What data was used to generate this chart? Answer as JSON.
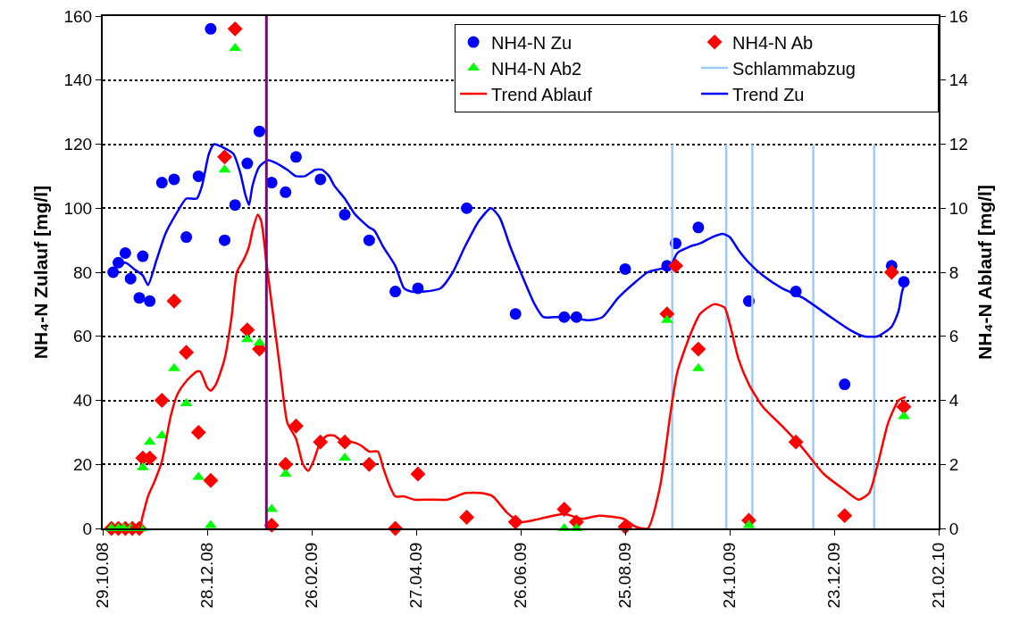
{
  "chart_data": {
    "type": "scatter",
    "ylabel": "NH₄-N Zulauf [mg/l]",
    "y2label": "NH₄-N Ablauf [mg/l]",
    "xlim": [
      "2008-10-29",
      "2010-02-21"
    ],
    "xticks": [
      {
        "value": "2008-10-29",
        "label": "29.10.08"
      },
      {
        "value": "2008-12-28",
        "label": "28.12.08"
      },
      {
        "value": "2009-02-26",
        "label": "26.02.09"
      },
      {
        "value": "2009-04-27",
        "label": "27.04.09"
      },
      {
        "value": "2009-06-26",
        "label": "26.06.09"
      },
      {
        "value": "2009-08-25",
        "label": "25.08.09"
      },
      {
        "value": "2009-10-24",
        "label": "24.10.09"
      },
      {
        "value": "2009-12-23",
        "label": "23.12.09"
      },
      {
        "value": "2010-02-21",
        "label": "21.02.10"
      }
    ],
    "ylim": [
      0,
      160
    ],
    "yticks": [
      0,
      20,
      40,
      60,
      80,
      100,
      120,
      140,
      160
    ],
    "y2lim": [
      0,
      16
    ],
    "y2ticks": [
      0,
      2,
      4,
      6,
      8,
      10,
      12,
      14,
      16
    ],
    "grid": "y",
    "legend": "top right",
    "ref_lines": [
      {
        "axis": "x",
        "value": "2009-01-31",
        "color": "#800080"
      }
    ],
    "series": [
      {
        "name": "NH4-N Zu",
        "marker": "circle",
        "color": "#0000ff",
        "x": [
          "2008-11-04",
          "2008-11-07",
          "2008-11-11",
          "2008-11-14",
          "2008-11-19",
          "2008-11-21",
          "2008-11-25",
          "2008-12-02",
          "2008-12-09",
          "2008-12-16",
          "2008-12-23",
          "2008-12-30",
          "2009-01-07",
          "2009-01-13",
          "2009-01-20",
          "2009-01-27",
          "2009-02-03",
          "2009-02-11",
          "2009-02-17",
          "2009-03-03",
          "2009-03-17",
          "2009-03-31",
          "2009-04-15",
          "2009-04-28",
          "2009-05-26",
          "2009-06-23",
          "2009-07-21",
          "2009-07-28",
          "2009-08-25",
          "2009-09-18",
          "2009-09-23",
          "2009-10-06",
          "2009-11-04",
          "2009-12-01",
          "2009-12-29",
          "2010-01-25",
          "2010-02-01"
        ],
        "values": [
          80,
          83,
          86,
          78,
          72,
          85,
          71,
          108,
          109,
          91,
          110,
          156,
          90,
          101,
          114,
          124,
          108,
          105,
          116,
          109,
          98,
          90,
          74,
          75,
          100,
          67,
          66,
          66,
          81,
          82,
          89,
          94,
          71,
          74,
          45,
          82,
          77
        ]
      },
      {
        "name": "NH4-N Ab",
        "marker": "diamond",
        "axis": "y2",
        "color": "#ff0000",
        "x": [
          "2008-11-03",
          "2008-11-07",
          "2008-11-11",
          "2008-11-15",
          "2008-11-19",
          "2008-11-21",
          "2008-11-25",
          "2008-12-02",
          "2008-12-09",
          "2008-12-16",
          "2008-12-23",
          "2008-12-30",
          "2009-01-07",
          "2009-01-13",
          "2009-01-20",
          "2009-01-27",
          "2009-02-03",
          "2009-02-11",
          "2009-02-17",
          "2009-03-03",
          "2009-03-17",
          "2009-03-31",
          "2009-04-15",
          "2009-04-28",
          "2009-05-26",
          "2009-06-23",
          "2009-07-21",
          "2009-07-28",
          "2009-08-25",
          "2009-09-18",
          "2009-09-23",
          "2009-10-06",
          "2009-11-04",
          "2009-12-01",
          "2009-12-29",
          "2010-01-25",
          "2010-02-01"
        ],
        "values": [
          0,
          0,
          0,
          0,
          0,
          2.2,
          2.2,
          4.0,
          7.1,
          5.5,
          3.0,
          1.5,
          11.6,
          15.6,
          6.2,
          5.6,
          0.1,
          2.0,
          3.2,
          2.7,
          2.7,
          2.0,
          0,
          1.7,
          0.35,
          0.2,
          0.6,
          0.2,
          0.05,
          6.7,
          8.2,
          5.6,
          0.25,
          2.7,
          0.4,
          8.0,
          3.8
        ]
      },
      {
        "name": "NH4-N Ab2",
        "marker": "triangle",
        "axis": "y2",
        "color": "#00ff00",
        "x": [
          "2008-11-03",
          "2008-11-07",
          "2008-11-10",
          "2008-11-14",
          "2008-11-20",
          "2008-11-21",
          "2008-11-25",
          "2008-12-02",
          "2008-12-09",
          "2008-12-16",
          "2008-12-23",
          "2008-12-30",
          "2009-01-07",
          "2009-01-13",
          "2009-01-20",
          "2009-01-27",
          "2009-02-03",
          "2009-02-11",
          "2009-03-17",
          "2009-07-21",
          "2009-07-28",
          "2009-09-18",
          "2009-10-06",
          "2009-11-04",
          "2010-02-01"
        ],
        "values": [
          0,
          0,
          0,
          0,
          0,
          1.9,
          2.7,
          2.9,
          5.0,
          3.9,
          1.6,
          0.1,
          11.2,
          15.0,
          5.9,
          5.8,
          0.6,
          1.7,
          2.2,
          0,
          0,
          6.5,
          5.0,
          0.1,
          3.5
        ]
      },
      {
        "name": "Schlammabzug",
        "type": "line",
        "color": "#99ccff",
        "x": [
          "2009-09-21",
          "2009-09-21",
          null,
          "2009-10-22",
          "2009-10-22",
          null,
          "2009-11-06",
          "2009-11-06",
          null,
          "2009-12-11",
          "2009-12-11",
          null,
          "2010-01-15",
          "2010-01-15",
          null
        ],
        "values": [
          0,
          120,
          null,
          0,
          120,
          null,
          0,
          120,
          null,
          0,
          120,
          null,
          0,
          120,
          null
        ]
      },
      {
        "name": "Trend Ablauf",
        "type": "line",
        "axis": "y2",
        "color": "#ff0000",
        "x": [
          "2008-11-14",
          "2008-11-19",
          "2008-11-21",
          "2008-11-24",
          "2008-11-28",
          "2008-12-02",
          "2008-12-07",
          "2008-12-11",
          "2008-12-16",
          "2008-12-22",
          "2008-12-24",
          "2008-12-28",
          "2008-12-30",
          "2009-01-02",
          "2009-01-07",
          "2009-01-11",
          "2009-01-14",
          "2009-01-18",
          "2009-01-21",
          "2009-01-23",
          "2009-01-26",
          "2009-01-28",
          "2009-01-31",
          "2009-02-04",
          "2009-02-08",
          "2009-02-12",
          "2009-02-17",
          "2009-02-21",
          "2009-02-24",
          "2009-02-27",
          "2009-03-03",
          "2009-03-07",
          "2009-03-11",
          "2009-03-16",
          "2009-03-21",
          "2009-03-26",
          "2009-03-31",
          "2009-04-05",
          "2009-04-08",
          "2009-04-12",
          "2009-04-15",
          "2009-04-20",
          "2009-04-26",
          "2009-05-05",
          "2009-05-15",
          "2009-05-25",
          "2009-06-04",
          "2009-06-10",
          "2009-06-18",
          "2009-06-26",
          "2009-07-07",
          "2009-07-21",
          "2009-07-31",
          "2009-08-10",
          "2009-08-24",
          "2009-08-31",
          "2009-09-07",
          "2009-09-14",
          "2009-09-20",
          "2009-09-24",
          "2009-10-01",
          "2009-10-07",
          "2009-10-15",
          "2009-10-21",
          "2009-10-24",
          "2009-10-29",
          "2009-11-04",
          "2009-11-12",
          "2009-11-23",
          "2009-12-05",
          "2009-12-17",
          "2009-12-29",
          "2010-01-06",
          "2010-01-12",
          "2010-01-17",
          "2010-01-23",
          "2010-01-29",
          "2010-02-02"
        ],
        "values": [
          0.05,
          0,
          0.4,
          1.0,
          1.5,
          2.1,
          3.5,
          4.2,
          4.6,
          4.9,
          4.9,
          4.4,
          4.3,
          4.5,
          5.3,
          6.6,
          8.0,
          8.4,
          8.8,
          9.3,
          9.8,
          9.6,
          8.3,
          6.6,
          4.9,
          3.3,
          2.8,
          2.0,
          1.8,
          2.1,
          2.7,
          2.9,
          2.9,
          2.7,
          2.7,
          2.6,
          2.4,
          2.4,
          1.9,
          1.3,
          1.0,
          1.0,
          0.9,
          0.9,
          0.9,
          1.1,
          1.1,
          1.0,
          0.5,
          0.2,
          0.3,
          0.45,
          0.3,
          0.4,
          0.3,
          0.05,
          0,
          1.3,
          3.6,
          4.9,
          6.0,
          6.7,
          7.0,
          6.9,
          6.4,
          5.3,
          4.5,
          3.8,
          3.2,
          2.5,
          1.7,
          1.2,
          0.9,
          1.1,
          2.0,
          3.3,
          4.0,
          4.1
        ]
      },
      {
        "name": "Trend Zu",
        "type": "line",
        "color": "#0000ff",
        "x": [
          "2008-11-04",
          "2008-11-11",
          "2008-11-16",
          "2008-11-21",
          "2008-11-24",
          "2008-11-29",
          "2008-12-04",
          "2008-12-11",
          "2008-12-16",
          "2008-12-22",
          "2008-12-25",
          "2008-12-29",
          "2009-01-01",
          "2009-01-06",
          "2009-01-12",
          "2009-01-16",
          "2009-01-19",
          "2009-01-21",
          "2009-01-23",
          "2009-01-27",
          "2009-02-01",
          "2009-02-06",
          "2009-02-12",
          "2009-02-17",
          "2009-02-22",
          "2009-02-28",
          "2009-03-04",
          "2009-03-08",
          "2009-03-11",
          "2009-03-17",
          "2009-03-23",
          "2009-03-31",
          "2009-04-03",
          "2009-04-08",
          "2009-04-15",
          "2009-04-20",
          "2009-04-24",
          "2009-05-02",
          "2009-05-11",
          "2009-05-18",
          "2009-05-25",
          "2009-06-02",
          "2009-06-09",
          "2009-06-14",
          "2009-06-20",
          "2009-06-26",
          "2009-07-04",
          "2009-07-09",
          "2009-07-15",
          "2009-07-23",
          "2009-08-04",
          "2009-08-12",
          "2009-08-21",
          "2009-08-31",
          "2009-09-07",
          "2009-09-14",
          "2009-09-20",
          "2009-09-24",
          "2009-10-01",
          "2009-10-07",
          "2009-10-14",
          "2009-10-20",
          "2009-10-24",
          "2009-10-29",
          "2009-11-04",
          "2009-11-12",
          "2009-11-23",
          "2009-12-05",
          "2009-12-21",
          "2010-01-01",
          "2010-01-09",
          "2010-01-17",
          "2010-01-25",
          "2010-01-29",
          "2010-01-31",
          "2010-02-02"
        ],
        "values": [
          81,
          83,
          81,
          79,
          76,
          84,
          92,
          99,
          103,
          103,
          107,
          117,
          120,
          119,
          117,
          111,
          104,
          101,
          107,
          113,
          115,
          114,
          112,
          110,
          110,
          112,
          112,
          110,
          107,
          103,
          98,
          94,
          93,
          88,
          82,
          75,
          74,
          74,
          75,
          80,
          88,
          96,
          100,
          97,
          88,
          80,
          70,
          66,
          66,
          66,
          65,
          66,
          72,
          77,
          80,
          81,
          82,
          86,
          88,
          89,
          91,
          92,
          91,
          87,
          83,
          79,
          75,
          72,
          66,
          62,
          60,
          60,
          63,
          68,
          74,
          77
        ]
      }
    ]
  }
}
